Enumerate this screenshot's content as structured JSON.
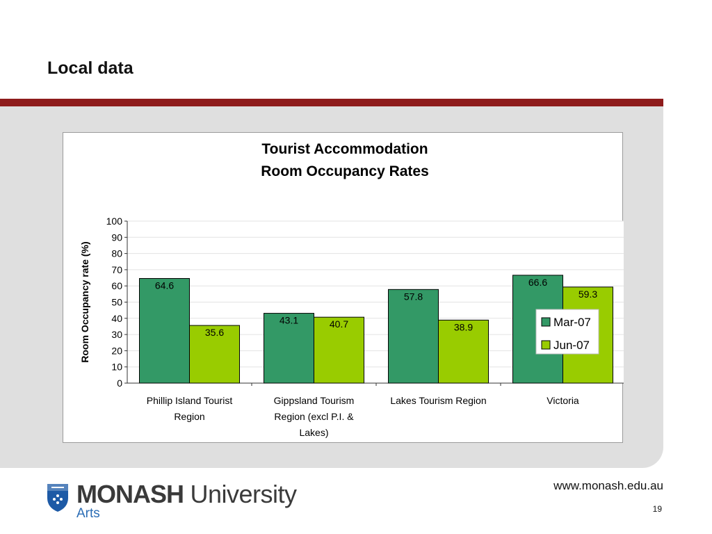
{
  "slide": {
    "title": "Local data",
    "url": "www.monash.edu.au",
    "page_number": "19"
  },
  "logo": {
    "name_strong": "MONASH",
    "name_rest": "University",
    "faculty": "Arts"
  },
  "colors": {
    "accent_rule": "#8e1b1b",
    "panel": "#dfdfdf",
    "series_mar": "#339966",
    "series_jun": "#99cc00"
  },
  "chart_data": {
    "type": "bar",
    "title_lines": [
      "Tourist Accommodation",
      "Room Occupancy Rates"
    ],
    "xlabel": "",
    "ylabel": "Room Occupancy rate (%)",
    "ylim": [
      0,
      100
    ],
    "yticks": [
      0,
      10,
      20,
      30,
      40,
      50,
      60,
      70,
      80,
      90,
      100
    ],
    "grid": true,
    "legend_position": "right",
    "categories": [
      [
        "Phillip Island Tourist",
        "Region"
      ],
      [
        "Gippsland Tourism",
        "Region (excl P.I. &",
        "Lakes)"
      ],
      [
        "Lakes Tourism Region"
      ],
      [
        "Victoria"
      ]
    ],
    "series": [
      {
        "name": "Mar-07",
        "color": "#339966",
        "values": [
          64.6,
          43.1,
          57.8,
          66.6
        ]
      },
      {
        "name": "Jun-07",
        "color": "#99cc00",
        "values": [
          35.6,
          40.7,
          38.9,
          59.3
        ]
      }
    ]
  }
}
